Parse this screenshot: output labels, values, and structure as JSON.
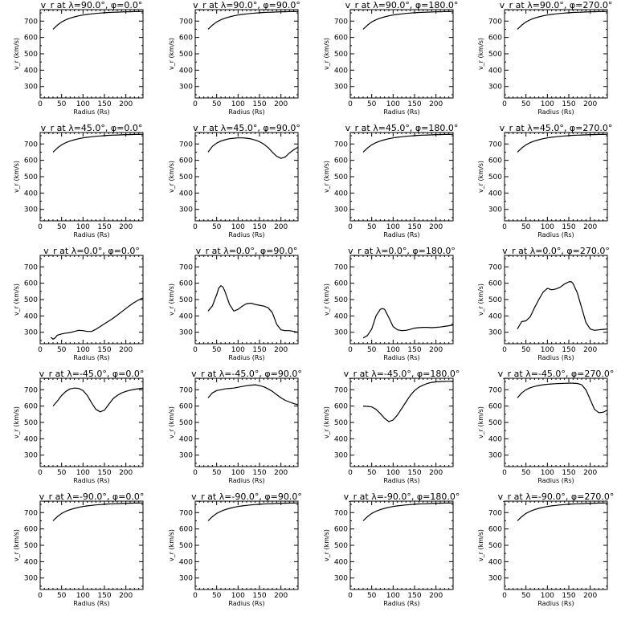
{
  "figure": {
    "background": "#ffffff",
    "foreground": "#000000"
  },
  "chart_data": [
    {
      "type": "line",
      "title": "v_r at λ=90.0°, φ=0.0°",
      "xlabel": "Radius (Rs)",
      "ylabel": "v_r (km/s)",
      "xlim": [
        0,
        240
      ],
      "ylim": [
        230,
        770
      ],
      "x": [
        30,
        40,
        50,
        60,
        70,
        80,
        90,
        100,
        110,
        120,
        130,
        140,
        150,
        160,
        170,
        180,
        190,
        200,
        210,
        220,
        230,
        240
      ],
      "values": [
        650,
        675,
        695,
        708,
        718,
        726,
        732,
        737,
        741,
        744,
        747,
        749,
        751,
        753,
        754,
        755,
        756,
        757,
        757,
        758,
        758,
        759
      ]
    },
    {
      "type": "line",
      "title": "v_r at λ=90.0°, φ=90.0°",
      "xlabel": "Radius (Rs)",
      "ylabel": "v_r (km/s)",
      "xlim": [
        0,
        240
      ],
      "ylim": [
        230,
        770
      ],
      "x": [
        30,
        40,
        50,
        60,
        70,
        80,
        90,
        100,
        110,
        120,
        130,
        140,
        150,
        160,
        170,
        180,
        190,
        200,
        210,
        220,
        230,
        240
      ],
      "values": [
        650,
        675,
        695,
        708,
        718,
        726,
        732,
        737,
        741,
        744,
        747,
        749,
        751,
        753,
        754,
        755,
        756,
        757,
        757,
        758,
        758,
        759
      ]
    },
    {
      "type": "line",
      "title": "v_r at λ=90.0°, φ=180.0°",
      "xlabel": "Radius (Rs)",
      "ylabel": "v_r (km/s)",
      "xlim": [
        0,
        240
      ],
      "ylim": [
        230,
        770
      ],
      "x": [
        30,
        40,
        50,
        60,
        70,
        80,
        90,
        100,
        110,
        120,
        130,
        140,
        150,
        160,
        170,
        180,
        190,
        200,
        210,
        220,
        230,
        240
      ],
      "values": [
        650,
        675,
        695,
        708,
        718,
        726,
        732,
        737,
        741,
        744,
        747,
        749,
        751,
        753,
        754,
        755,
        756,
        757,
        757,
        758,
        758,
        759
      ]
    },
    {
      "type": "line",
      "title": "v_r at λ=90.0°, φ=270.0°",
      "xlabel": "Radius (Rs)",
      "ylabel": "v_r (km/s)",
      "xlim": [
        0,
        240
      ],
      "ylim": [
        230,
        770
      ],
      "x": [
        30,
        40,
        50,
        60,
        70,
        80,
        90,
        100,
        110,
        120,
        130,
        140,
        150,
        160,
        170,
        180,
        190,
        200,
        210,
        220,
        230,
        240
      ],
      "values": [
        650,
        675,
        695,
        708,
        718,
        726,
        732,
        737,
        741,
        744,
        747,
        749,
        751,
        753,
        754,
        755,
        756,
        757,
        757,
        758,
        758,
        759
      ]
    },
    {
      "type": "line",
      "title": "v_r at λ=45.0°, φ=0.0°",
      "xlabel": "Radius (Rs)",
      "ylabel": "v_r (km/s)",
      "xlim": [
        0,
        240
      ],
      "ylim": [
        230,
        770
      ],
      "x": [
        30,
        40,
        50,
        60,
        70,
        80,
        90,
        100,
        110,
        120,
        130,
        140,
        150,
        160,
        170,
        180,
        190,
        200,
        210,
        220,
        230,
        240
      ],
      "values": [
        650,
        675,
        695,
        708,
        718,
        726,
        732,
        737,
        741,
        744,
        747,
        749,
        751,
        753,
        754,
        755,
        756,
        757,
        757,
        758,
        758,
        759
      ]
    },
    {
      "type": "line",
      "title": "v_r at λ=45.0°, φ=90.0°",
      "xlabel": "Radius (Rs)",
      "ylabel": "v_r (km/s)",
      "xlim": [
        0,
        240
      ],
      "ylim": [
        230,
        770
      ],
      "x": [
        30,
        40,
        50,
        60,
        70,
        80,
        90,
        100,
        110,
        120,
        130,
        140,
        150,
        160,
        170,
        180,
        190,
        200,
        210,
        220,
        230,
        240
      ],
      "values": [
        650,
        685,
        705,
        718,
        726,
        732,
        735,
        737,
        737,
        735,
        731,
        724,
        714,
        699,
        678,
        650,
        625,
        612,
        620,
        645,
        665,
        680
      ]
    },
    {
      "type": "line",
      "title": "v_r at λ=45.0°, φ=180.0°",
      "xlabel": "Radius (Rs)",
      "ylabel": "v_r (km/s)",
      "xlim": [
        0,
        240
      ],
      "ylim": [
        230,
        770
      ],
      "x": [
        30,
        40,
        50,
        60,
        70,
        80,
        90,
        100,
        110,
        120,
        130,
        140,
        150,
        160,
        170,
        180,
        190,
        200,
        210,
        220,
        230,
        240
      ],
      "values": [
        650,
        675,
        695,
        708,
        718,
        726,
        732,
        737,
        741,
        744,
        747,
        749,
        751,
        753,
        754,
        755,
        756,
        757,
        757,
        758,
        758,
        759
      ]
    },
    {
      "type": "line",
      "title": "v_r at λ=45.0°, φ=270.0°",
      "xlabel": "Radius (Rs)",
      "ylabel": "v_r (km/s)",
      "xlim": [
        0,
        240
      ],
      "ylim": [
        230,
        770
      ],
      "x": [
        30,
        40,
        50,
        60,
        70,
        80,
        90,
        100,
        110,
        120,
        130,
        140,
        150,
        160,
        170,
        180,
        190,
        200,
        210,
        220,
        230,
        240
      ],
      "values": [
        650,
        675,
        695,
        708,
        718,
        726,
        732,
        737,
        741,
        744,
        747,
        749,
        751,
        753,
        754,
        755,
        756,
        757,
        757,
        758,
        758,
        759
      ]
    },
    {
      "type": "line",
      "title": "v_r at λ=0.0°, φ=0.0°",
      "xlabel": "Radius (Rs)",
      "ylabel": "v_r (km/s)",
      "xlim": [
        0,
        240
      ],
      "ylim": [
        230,
        770
      ],
      "x": [
        25,
        30,
        35,
        40,
        50,
        60,
        70,
        80,
        90,
        100,
        110,
        120,
        130,
        140,
        150,
        160,
        170,
        180,
        190,
        200,
        210,
        220,
        230,
        240
      ],
      "values": [
        270,
        258,
        266,
        282,
        290,
        295,
        298,
        305,
        312,
        310,
        305,
        305,
        318,
        335,
        352,
        368,
        385,
        405,
        425,
        445,
        465,
        483,
        498,
        510
      ]
    },
    {
      "type": "line",
      "title": "v_r at λ=0.0°, φ=90.0°",
      "xlabel": "Radius (Rs)",
      "ylabel": "v_r (km/s)",
      "xlim": [
        0,
        240
      ],
      "ylim": [
        230,
        770
      ],
      "x": [
        30,
        40,
        50,
        55,
        60,
        65,
        70,
        80,
        90,
        100,
        110,
        120,
        130,
        140,
        150,
        160,
        170,
        180,
        190,
        200,
        210,
        220,
        230,
        240
      ],
      "values": [
        430,
        460,
        530,
        570,
        585,
        575,
        545,
        470,
        430,
        440,
        460,
        475,
        478,
        470,
        465,
        460,
        450,
        420,
        350,
        315,
        310,
        310,
        305,
        300
      ]
    },
    {
      "type": "line",
      "title": "v_r at λ=0.0°, φ=180.0°",
      "xlabel": "Radius (Rs)",
      "ylabel": "v_r (km/s)",
      "xlim": [
        0,
        240
      ],
      "ylim": [
        230,
        770
      ],
      "x": [
        30,
        40,
        50,
        60,
        70,
        75,
        80,
        90,
        100,
        110,
        120,
        130,
        140,
        150,
        160,
        170,
        180,
        190,
        200,
        210,
        220,
        230,
        240
      ],
      "values": [
        265,
        280,
        320,
        400,
        440,
        445,
        440,
        390,
        335,
        315,
        310,
        312,
        318,
        325,
        328,
        330,
        330,
        328,
        330,
        332,
        336,
        340,
        345
      ]
    },
    {
      "type": "line",
      "title": "v_r at λ=0.0°, φ=270.0°",
      "xlabel": "Radius (Rs)",
      "ylabel": "v_r (km/s)",
      "xlim": [
        0,
        240
      ],
      "ylim": [
        230,
        770
      ],
      "x": [
        30,
        40,
        50,
        60,
        70,
        80,
        90,
        100,
        110,
        120,
        130,
        140,
        150,
        155,
        160,
        170,
        180,
        190,
        200,
        210,
        220,
        230,
        240
      ],
      "values": [
        320,
        365,
        370,
        395,
        450,
        500,
        545,
        568,
        560,
        565,
        575,
        595,
        608,
        610,
        598,
        540,
        450,
        360,
        320,
        312,
        315,
        318,
        320
      ]
    },
    {
      "type": "line",
      "title": "v_r at λ=-45.0°, φ=0.0°",
      "xlabel": "Radius (Rs)",
      "ylabel": "v_r (km/s)",
      "xlim": [
        0,
        240
      ],
      "ylim": [
        230,
        770
      ],
      "x": [
        30,
        40,
        50,
        60,
        70,
        80,
        90,
        100,
        110,
        120,
        130,
        140,
        150,
        160,
        170,
        180,
        190,
        200,
        210,
        220,
        230,
        240
      ],
      "values": [
        600,
        630,
        665,
        690,
        705,
        710,
        708,
        695,
        665,
        620,
        580,
        565,
        575,
        610,
        645,
        665,
        680,
        690,
        697,
        702,
        706,
        710
      ]
    },
    {
      "type": "line",
      "title": "v_r at λ=-45.0°, φ=90.0°",
      "xlabel": "Radius (Rs)",
      "ylabel": "v_r (km/s)",
      "xlim": [
        0,
        240
      ],
      "ylim": [
        230,
        770
      ],
      "x": [
        30,
        40,
        50,
        60,
        70,
        80,
        90,
        100,
        110,
        120,
        130,
        140,
        150,
        160,
        170,
        180,
        190,
        200,
        210,
        220,
        230,
        240
      ],
      "values": [
        650,
        680,
        695,
        700,
        705,
        708,
        710,
        715,
        720,
        725,
        728,
        730,
        725,
        718,
        705,
        690,
        670,
        650,
        635,
        625,
        615,
        608
      ]
    },
    {
      "type": "line",
      "title": "v_r at λ=-45.0°, φ=180.0°",
      "xlabel": "Radius (Rs)",
      "ylabel": "v_r (km/s)",
      "xlim": [
        0,
        240
      ],
      "ylim": [
        230,
        770
      ],
      "x": [
        30,
        40,
        50,
        60,
        70,
        80,
        90,
        100,
        110,
        120,
        130,
        140,
        150,
        160,
        170,
        180,
        190,
        200,
        210,
        220,
        230,
        240
      ],
      "values": [
        600,
        598,
        595,
        580,
        555,
        525,
        505,
        515,
        545,
        585,
        625,
        665,
        695,
        715,
        728,
        738,
        745,
        748,
        750,
        751,
        752,
        752
      ]
    },
    {
      "type": "line",
      "title": "v_r at λ=-45.0°, φ=270.0°",
      "xlabel": "Radius (Rs)",
      "ylabel": "v_r (km/s)",
      "xlim": [
        0,
        240
      ],
      "ylim": [
        230,
        770
      ],
      "x": [
        30,
        40,
        50,
        60,
        70,
        80,
        90,
        100,
        110,
        120,
        130,
        140,
        150,
        160,
        170,
        180,
        190,
        200,
        210,
        220,
        230,
        240
      ],
      "values": [
        650,
        680,
        700,
        712,
        720,
        726,
        730,
        733,
        735,
        737,
        738,
        739,
        740,
        740,
        738,
        730,
        700,
        640,
        580,
        560,
        562,
        575
      ]
    },
    {
      "type": "line",
      "title": "v_r at λ=-90.0°, φ=0.0°",
      "xlabel": "Radius (Rs)",
      "ylabel": "v_r (km/s)",
      "xlim": [
        0,
        240
      ],
      "ylim": [
        230,
        770
      ],
      "x": [
        30,
        40,
        50,
        60,
        70,
        80,
        90,
        100,
        110,
        120,
        130,
        140,
        150,
        160,
        170,
        180,
        190,
        200,
        210,
        220,
        230,
        240
      ],
      "values": [
        650,
        675,
        695,
        708,
        718,
        726,
        732,
        737,
        741,
        744,
        747,
        749,
        751,
        753,
        754,
        755,
        756,
        757,
        757,
        758,
        758,
        759
      ]
    },
    {
      "type": "line",
      "title": "v_r at λ=-90.0°, φ=90.0°",
      "xlabel": "Radius (Rs)",
      "ylabel": "v_r (km/s)",
      "xlim": [
        0,
        240
      ],
      "ylim": [
        230,
        770
      ],
      "x": [
        30,
        40,
        50,
        60,
        70,
        80,
        90,
        100,
        110,
        120,
        130,
        140,
        150,
        160,
        170,
        180,
        190,
        200,
        210,
        220,
        230,
        240
      ],
      "values": [
        650,
        675,
        695,
        708,
        718,
        726,
        732,
        737,
        741,
        744,
        747,
        749,
        751,
        753,
        754,
        755,
        756,
        757,
        757,
        758,
        758,
        759
      ]
    },
    {
      "type": "line",
      "title": "v_r at λ=-90.0°, φ=180.0°",
      "xlabel": "Radius (Rs)",
      "ylabel": "v_r (km/s)",
      "xlim": [
        0,
        240
      ],
      "ylim": [
        230,
        770
      ],
      "x": [
        30,
        40,
        50,
        60,
        70,
        80,
        90,
        100,
        110,
        120,
        130,
        140,
        150,
        160,
        170,
        180,
        190,
        200,
        210,
        220,
        230,
        240
      ],
      "values": [
        650,
        675,
        695,
        708,
        718,
        726,
        732,
        737,
        741,
        744,
        747,
        749,
        751,
        753,
        754,
        755,
        756,
        757,
        757,
        758,
        758,
        759
      ]
    },
    {
      "type": "line",
      "title": "v_r at λ=-90.0°, φ=270.0°",
      "xlabel": "Radius (Rs)",
      "ylabel": "v_r (km/s)",
      "xlim": [
        0,
        240
      ],
      "ylim": [
        230,
        770
      ],
      "x": [
        30,
        40,
        50,
        60,
        70,
        80,
        90,
        100,
        110,
        120,
        130,
        140,
        150,
        160,
        170,
        180,
        190,
        200,
        210,
        220,
        230,
        240
      ],
      "values": [
        650,
        675,
        695,
        708,
        718,
        726,
        732,
        737,
        741,
        744,
        747,
        749,
        751,
        753,
        754,
        755,
        756,
        757,
        757,
        758,
        758,
        759
      ]
    }
  ]
}
